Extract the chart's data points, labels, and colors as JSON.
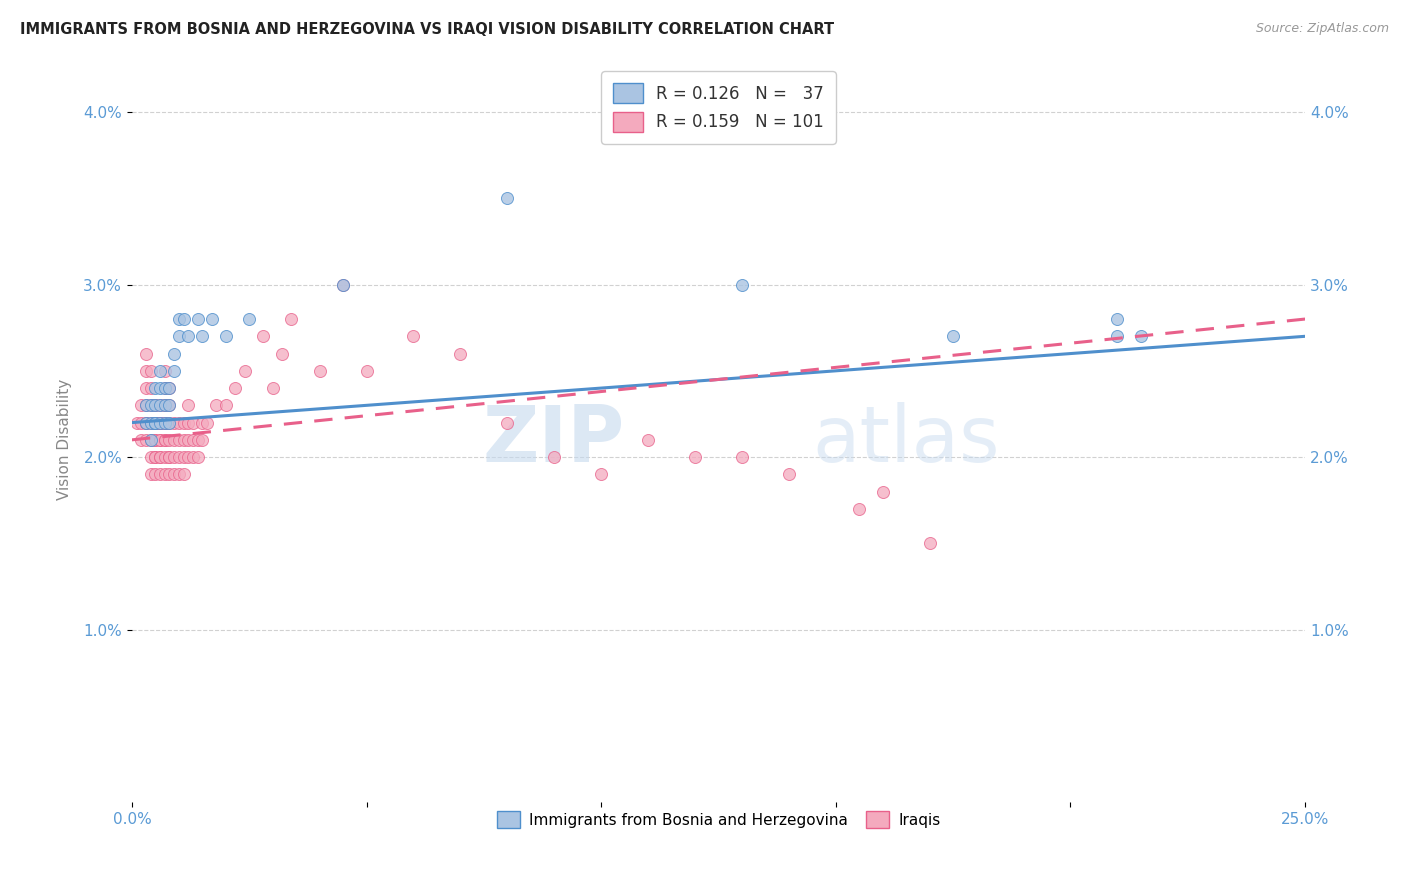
{
  "title": "IMMIGRANTS FROM BOSNIA AND HERZEGOVINA VS IRAQI VISION DISABILITY CORRELATION CHART",
  "source": "Source: ZipAtlas.com",
  "ylabel": "Vision Disability",
  "yticks": [
    "1.0%",
    "2.0%",
    "3.0%",
    "4.0%"
  ],
  "ytick_vals": [
    0.01,
    0.02,
    0.03,
    0.04
  ],
  "xlim": [
    0.0,
    0.25
  ],
  "ylim": [
    0.0,
    0.042
  ],
  "legend_r1": "R = 0.126",
  "legend_n1": "N =  37",
  "legend_r2": "R = 0.159",
  "legend_n2": "N = 101",
  "color_bosnia": "#aac4e2",
  "color_iraq": "#f4aabe",
  "color_line_bosnia": "#4f8fcc",
  "color_line_iraq": "#e8608a",
  "watermark_zip": "ZIP",
  "watermark_atlas": "atlas",
  "legend_label1": "Immigrants from Bosnia and Herzegovina",
  "legend_label2": "Iraqis",
  "bosnia_x": [
    0.003,
    0.003,
    0.004,
    0.004,
    0.004,
    0.005,
    0.005,
    0.005,
    0.005,
    0.006,
    0.006,
    0.006,
    0.006,
    0.007,
    0.007,
    0.007,
    0.008,
    0.008,
    0.008,
    0.009,
    0.009,
    0.01,
    0.01,
    0.011,
    0.012,
    0.014,
    0.015,
    0.017,
    0.02,
    0.025,
    0.045,
    0.08,
    0.13,
    0.175,
    0.21,
    0.21,
    0.215
  ],
  "bosnia_y": [
    0.022,
    0.023,
    0.021,
    0.022,
    0.023,
    0.022,
    0.022,
    0.023,
    0.024,
    0.022,
    0.023,
    0.024,
    0.025,
    0.022,
    0.023,
    0.024,
    0.022,
    0.023,
    0.024,
    0.025,
    0.026,
    0.027,
    0.028,
    0.028,
    0.027,
    0.028,
    0.027,
    0.028,
    0.027,
    0.028,
    0.03,
    0.035,
    0.03,
    0.027,
    0.027,
    0.028,
    0.027
  ],
  "iraq_x": [
    0.001,
    0.002,
    0.002,
    0.002,
    0.003,
    0.003,
    0.003,
    0.003,
    0.003,
    0.003,
    0.003,
    0.004,
    0.004,
    0.004,
    0.004,
    0.004,
    0.004,
    0.004,
    0.005,
    0.005,
    0.005,
    0.005,
    0.005,
    0.005,
    0.005,
    0.005,
    0.005,
    0.005,
    0.006,
    0.006,
    0.006,
    0.006,
    0.006,
    0.006,
    0.006,
    0.006,
    0.006,
    0.007,
    0.007,
    0.007,
    0.007,
    0.007,
    0.007,
    0.007,
    0.007,
    0.007,
    0.007,
    0.008,
    0.008,
    0.008,
    0.008,
    0.008,
    0.008,
    0.008,
    0.009,
    0.009,
    0.009,
    0.009,
    0.01,
    0.01,
    0.01,
    0.01,
    0.011,
    0.011,
    0.011,
    0.011,
    0.012,
    0.012,
    0.012,
    0.012,
    0.013,
    0.013,
    0.013,
    0.014,
    0.014,
    0.015,
    0.015,
    0.016,
    0.018,
    0.02,
    0.022,
    0.024,
    0.028,
    0.03,
    0.032,
    0.034,
    0.04,
    0.045,
    0.05,
    0.06,
    0.07,
    0.08,
    0.09,
    0.1,
    0.11,
    0.12,
    0.13,
    0.14,
    0.155,
    0.16,
    0.17
  ],
  "iraq_y": [
    0.022,
    0.021,
    0.022,
    0.023,
    0.021,
    0.022,
    0.022,
    0.023,
    0.024,
    0.025,
    0.026,
    0.019,
    0.02,
    0.021,
    0.022,
    0.023,
    0.024,
    0.025,
    0.019,
    0.02,
    0.02,
    0.021,
    0.021,
    0.022,
    0.022,
    0.022,
    0.023,
    0.023,
    0.019,
    0.02,
    0.02,
    0.021,
    0.021,
    0.022,
    0.022,
    0.022,
    0.023,
    0.019,
    0.02,
    0.021,
    0.021,
    0.022,
    0.022,
    0.023,
    0.023,
    0.024,
    0.025,
    0.019,
    0.02,
    0.02,
    0.021,
    0.022,
    0.023,
    0.024,
    0.019,
    0.02,
    0.021,
    0.022,
    0.019,
    0.02,
    0.021,
    0.022,
    0.019,
    0.02,
    0.021,
    0.022,
    0.02,
    0.021,
    0.022,
    0.023,
    0.02,
    0.021,
    0.022,
    0.02,
    0.021,
    0.021,
    0.022,
    0.022,
    0.023,
    0.023,
    0.024,
    0.025,
    0.027,
    0.024,
    0.026,
    0.028,
    0.025,
    0.03,
    0.025,
    0.027,
    0.026,
    0.022,
    0.02,
    0.019,
    0.021,
    0.02,
    0.02,
    0.019,
    0.017,
    0.018,
    0.015
  ],
  "bosnia_line_x": [
    0.0,
    0.25
  ],
  "bosnia_line_y": [
    0.022,
    0.027
  ],
  "iraq_line_x": [
    0.0,
    0.25
  ],
  "iraq_line_y": [
    0.021,
    0.028
  ]
}
